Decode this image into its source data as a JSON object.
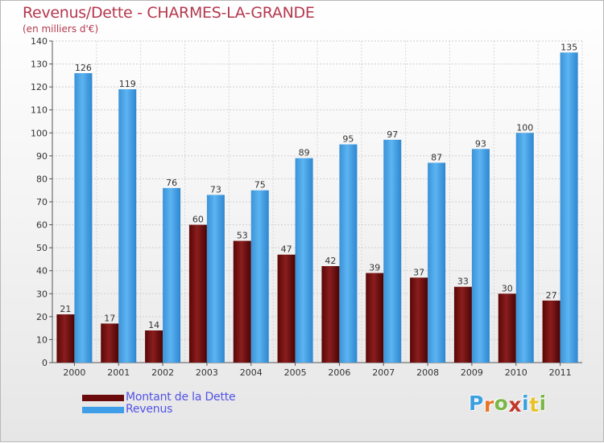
{
  "header": {
    "title": "Revenus/Dette - CHARMES-LA-GRANDE",
    "subtitle": "(en milliers d'€)"
  },
  "legend": {
    "items": [
      {
        "label": "Montant de la Dette",
        "color": "#6b0a0a"
      },
      {
        "label": "Revenus",
        "color": "#3f9ee8"
      }
    ]
  },
  "logo": {
    "text": "Proxiti",
    "letter_colors": [
      "#3aa0e0",
      "#e8742a",
      "#7ab648",
      "#c0392b",
      "#3aa0e0",
      "#e8c22a",
      "#7ab648"
    ]
  },
  "chart_data": {
    "type": "bar",
    "title": "Revenus/Dette - CHARMES-LA-GRANDE",
    "subtitle": "(en milliers d'€)",
    "categories": [
      "2000",
      "2001",
      "2002",
      "2003",
      "2004",
      "2005",
      "2006",
      "2007",
      "2008",
      "2009",
      "2010",
      "2011"
    ],
    "series": [
      {
        "name": "Montant de la Dette",
        "color": "#7a1414",
        "values": [
          21,
          17,
          14,
          60,
          53,
          47,
          42,
          39,
          37,
          33,
          30,
          27
        ]
      },
      {
        "name": "Revenus",
        "color": "#4aa6ec",
        "values": [
          126,
          119,
          76,
          73,
          75,
          89,
          95,
          97,
          87,
          93,
          100,
          135
        ]
      }
    ],
    "ylim": [
      0,
      140
    ],
    "yticks": [
      0,
      10,
      20,
      30,
      40,
      50,
      60,
      70,
      80,
      90,
      100,
      110,
      120,
      130,
      140
    ],
    "grid": true,
    "legend_position": "bottom-left",
    "xlabel": "",
    "ylabel": ""
  }
}
